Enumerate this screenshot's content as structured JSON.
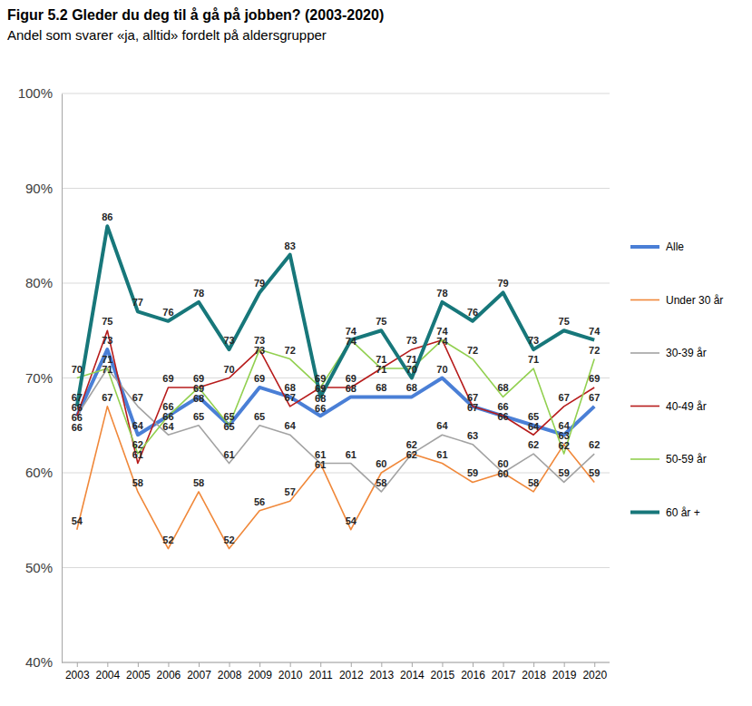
{
  "chart_data": {
    "type": "line",
    "title": "Figur 5.2 Gleder du deg til å gå på jobben? (2003-2020)",
    "subtitle": "Andel som svarer «ja, alltid» fordelt på aldersgrupper",
    "categories": [
      "2003",
      "2004",
      "2005",
      "2006",
      "2007",
      "2008",
      "2009",
      "2010",
      "2011",
      "2012",
      "2013",
      "2014",
      "2015",
      "2016",
      "2017",
      "2018",
      "2019",
      "2020"
    ],
    "series": [
      {
        "name": "Alle",
        "color": "#4a7fd6",
        "line_style": "thick",
        "values": [
          66,
          73,
          64,
          66,
          68,
          65,
          69,
          68,
          66,
          68,
          68,
          68,
          70,
          67,
          66,
          65,
          64,
          67
        ]
      },
      {
        "name": "Under 30 år",
        "color": "#f0883a",
        "line_style": "thin",
        "values": [
          54,
          67,
          58,
          52,
          58,
          52,
          56,
          57,
          61,
          54,
          60,
          62,
          61,
          59,
          60,
          58,
          63,
          59
        ]
      },
      {
        "name": "30-39 år",
        "color": "#a3a3a3",
        "line_style": "thin",
        "values": [
          66,
          71,
          67,
          64,
          65,
          61,
          65,
          64,
          61,
          61,
          58,
          62,
          64,
          63,
          60,
          62,
          59,
          62
        ]
      },
      {
        "name": "40-49 år",
        "color": "#b71c1c",
        "line_style": "thin",
        "values": [
          66,
          75,
          61,
          69,
          69,
          70,
          73,
          67,
          69,
          69,
          71,
          73,
          74,
          67,
          66,
          64,
          67,
          69
        ]
      },
      {
        "name": "50-59 år",
        "color": "#92d050",
        "line_style": "thin",
        "values": [
          70,
          71,
          62,
          66,
          69,
          65,
          73,
          72,
          69,
          74,
          71,
          71,
          74,
          72,
          68,
          71,
          62,
          72
        ]
      },
      {
        "name": "60 år +",
        "color": "#17777a",
        "line_style": "thick",
        "values": [
          67,
          86,
          77,
          76,
          78,
          73,
          79,
          83,
          68,
          74,
          75,
          70,
          78,
          76,
          79,
          73,
          75,
          74
        ]
      }
    ],
    "ylim": [
      40,
      100
    ],
    "yticks": [
      {
        "value": 40,
        "label": "40%"
      },
      {
        "value": 50,
        "label": "50%"
      },
      {
        "value": 60,
        "label": "60%"
      },
      {
        "value": 70,
        "label": "70%"
      },
      {
        "value": 80,
        "label": "80%"
      },
      {
        "value": 90,
        "label": "90%"
      },
      {
        "value": 100,
        "label": "100%"
      }
    ],
    "grid": true,
    "legend": "right",
    "data_labels": true
  }
}
